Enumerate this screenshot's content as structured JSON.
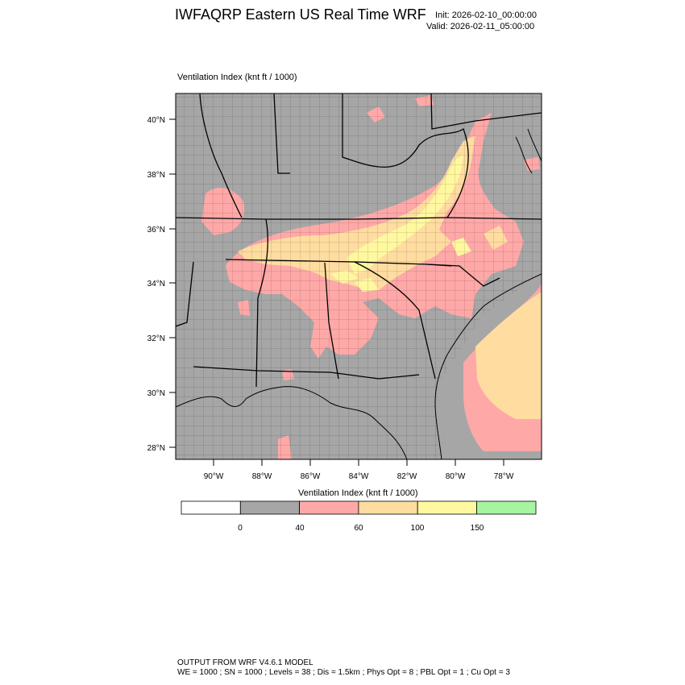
{
  "header": {
    "title": "IWFAQRP Eastern US Real Time WRF",
    "init": "Init: 2026-02-10_00:00:00",
    "valid": "Valid: 2026-02-11_05:00:00"
  },
  "map": {
    "field_label": "Ventilation Index   (knt ft / 1000)",
    "lat_labels": [
      "40°N",
      "38°N",
      "36°N",
      "34°N",
      "32°N",
      "30°N",
      "28°N"
    ],
    "lon_labels": [
      "90°W",
      "88°W",
      "86°W",
      "84°W",
      "82°W",
      "80°W",
      "78°W"
    ],
    "colors": {
      "background": "#a6a6a6",
      "land_outline": "#000000",
      "band_40_60": "#ffa8a8",
      "band_60_100": "#ffdca0",
      "band_100_150": "#fff8a0",
      "band_150_plus": "#a6f4a0"
    }
  },
  "colorbar": {
    "title": "Ventilation Index  (knt ft / 1000)",
    "labels": [
      "0",
      "40",
      "60",
      "100",
      "150"
    ],
    "colors": [
      "#ffffff",
      "#a6a6a6",
      "#ffa8a8",
      "#ffdca0",
      "#fff8a0",
      "#a6f4a0"
    ]
  },
  "footer": {
    "line1": "OUTPUT FROM WRF V4.6.1 MODEL",
    "line2": "WE = 1000 ; SN = 1000 ; Levels = 38 ; Dis = 1.5km ; Phys Opt = 8 ; PBL Opt = 1 ; Cu Opt = 3"
  }
}
